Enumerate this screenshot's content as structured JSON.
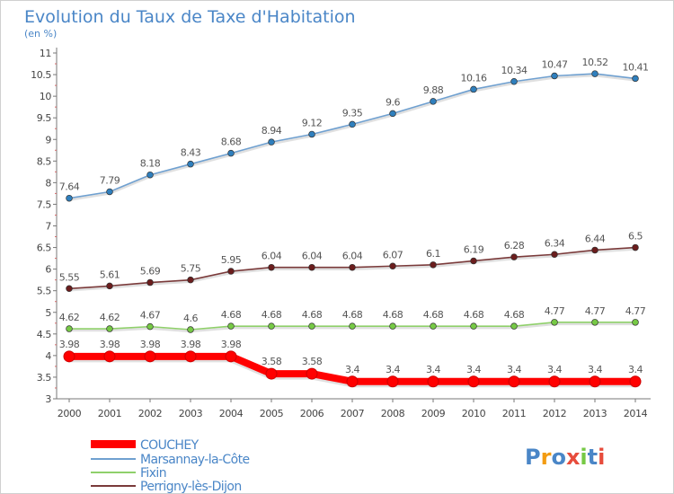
{
  "chart_data": {
    "type": "line",
    "title": "Evolution du Taux de Taxe d'Habitation",
    "subtitle": "(en %)",
    "ylim": [
      3,
      11
    ],
    "y_ticks": [
      "3",
      "3.5",
      "4",
      "4.5",
      "5",
      "5.5",
      "6",
      "6.5",
      "7",
      "7.5",
      "8",
      "8.5",
      "9",
      "9.5",
      "10",
      "10.5",
      "11"
    ],
    "x": [
      "2000",
      "2001",
      "2002",
      "2003",
      "2004",
      "2005",
      "2006",
      "2007",
      "2008",
      "2009",
      "2010",
      "2011",
      "2012",
      "2013",
      "2014"
    ],
    "grid": false,
    "legend_position": "bottom-left",
    "series": [
      {
        "name": "Marsannay-la-Côte",
        "color": "#6fa0d0",
        "marker_color": "#2f7fbd",
        "values": [
          7.64,
          7.79,
          8.18,
          8.43,
          8.68,
          8.94,
          9.12,
          9.35,
          9.6,
          9.88,
          10.16,
          10.34,
          10.47,
          10.52,
          10.41
        ],
        "labels": [
          "7.64",
          "7.79",
          "8.18",
          "8.43",
          "8.68",
          "8.94",
          "9.12",
          "9.35",
          "9.6",
          "9.88",
          "10.16",
          "10.34",
          "10.47",
          "10.52",
          "10.41"
        ]
      },
      {
        "name": "Perrigny-lès-Dijon",
        "color": "#7a3a3a",
        "marker_color": "#6b1d1d",
        "values": [
          5.55,
          5.61,
          5.69,
          5.75,
          5.95,
          6.04,
          6.04,
          6.04,
          6.07,
          6.1,
          6.19,
          6.28,
          6.34,
          6.44,
          6.5
        ],
        "labels": [
          "5.55",
          "5.61",
          "5.69",
          "5.75",
          "5.95",
          "6.04",
          "6.04",
          "6.04",
          "6.07",
          "6.1",
          "6.19",
          "6.28",
          "6.34",
          "6.44",
          "6.5"
        ]
      },
      {
        "name": "Fixin",
        "color": "#8fd06a",
        "marker_color": "#76c945",
        "values": [
          4.62,
          4.62,
          4.67,
          4.6,
          4.68,
          4.68,
          4.68,
          4.68,
          4.68,
          4.68,
          4.68,
          4.68,
          4.77,
          4.77,
          4.77
        ],
        "labels": [
          "4.62",
          "4.62",
          "4.67",
          "4.6",
          "4.68",
          "4.68",
          "4.68",
          "4.68",
          "4.68",
          "4.68",
          "4.68",
          "4.68",
          "4.77",
          "4.77",
          "4.77"
        ]
      },
      {
        "name": "COUCHEY",
        "color": "#ff0000",
        "marker_color": "#ff0000",
        "values": [
          3.98,
          3.98,
          3.98,
          3.98,
          3.98,
          3.58,
          3.58,
          3.4,
          3.4,
          3.4,
          3.4,
          3.4,
          3.4,
          3.4,
          3.4
        ],
        "labels": [
          "3.98",
          "3.98",
          "3.98",
          "3.98",
          "3.98",
          "3.58",
          "3.58",
          "3.4",
          "3.4",
          "3.4",
          "3.4",
          "3.4",
          "3.4",
          "3.4",
          "3.4"
        ]
      }
    ],
    "legend": [
      {
        "name": "COUCHEY",
        "color": "#ff0000"
      },
      {
        "name": "Marsannay-la-Côte",
        "color": "#6fa0d0"
      },
      {
        "name": "Fixin",
        "color": "#8fd06a"
      },
      {
        "name": "Perrigny-lès-Dijon",
        "color": "#7a3a3a"
      }
    ]
  },
  "branding": {
    "logo_text": "Proxiti",
    "logo_colors": [
      "#4a86c7",
      "#f39c12",
      "#4a86c7",
      "#e74c3c",
      "#76c945",
      "#4a86c7",
      "#e74c3c"
    ]
  }
}
